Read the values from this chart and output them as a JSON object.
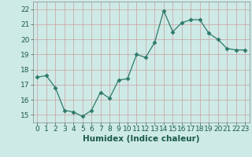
{
  "x": [
    0,
    1,
    2,
    3,
    4,
    5,
    6,
    7,
    8,
    9,
    10,
    11,
    12,
    13,
    14,
    15,
    16,
    17,
    18,
    19,
    20,
    21,
    22,
    23
  ],
  "y": [
    17.5,
    17.6,
    16.8,
    15.3,
    15.2,
    14.9,
    15.3,
    16.5,
    16.1,
    17.3,
    17.4,
    19.0,
    18.8,
    19.8,
    21.9,
    20.5,
    21.1,
    21.3,
    21.3,
    20.4,
    20.0,
    19.4,
    19.3,
    19.3
  ],
  "line_color": "#2d7a6a",
  "marker": "D",
  "marker_size": 2.5,
  "bg_color": "#ceeae6",
  "grid_color": "#b8d8d4",
  "xlabel": "Humidex (Indice chaleur)",
  "xlim": [
    -0.5,
    23.5
  ],
  "ylim": [
    14.5,
    22.5
  ],
  "yticks": [
    15,
    16,
    17,
    18,
    19,
    20,
    21,
    22
  ],
  "xticks": [
    0,
    1,
    2,
    3,
    4,
    5,
    6,
    7,
    8,
    9,
    10,
    11,
    12,
    13,
    14,
    15,
    16,
    17,
    18,
    19,
    20,
    21,
    22,
    23
  ],
  "tick_fontsize": 6.5,
  "label_fontsize": 7.5
}
